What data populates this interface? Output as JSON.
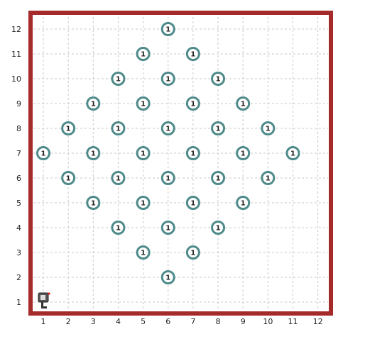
{
  "world": {
    "columns": 12,
    "rows": 12,
    "wall_color": "#a52a2a",
    "grid_color": "#c8c8c8",
    "beeper_ring_color": "#4e8a8a",
    "x_labels": [
      "1",
      "2",
      "3",
      "4",
      "5",
      "6",
      "7",
      "8",
      "9",
      "10",
      "11",
      "12"
    ],
    "y_labels": [
      "1",
      "2",
      "3",
      "4",
      "5",
      "6",
      "7",
      "8",
      "9",
      "10",
      "11",
      "12"
    ]
  },
  "beepers": [
    {
      "col": 6,
      "row": 12,
      "count": "1"
    },
    {
      "col": 5,
      "row": 11,
      "count": "1"
    },
    {
      "col": 7,
      "row": 11,
      "count": "1"
    },
    {
      "col": 4,
      "row": 10,
      "count": "1"
    },
    {
      "col": 6,
      "row": 10,
      "count": "1"
    },
    {
      "col": 8,
      "row": 10,
      "count": "1"
    },
    {
      "col": 3,
      "row": 9,
      "count": "1"
    },
    {
      "col": 5,
      "row": 9,
      "count": "1"
    },
    {
      "col": 7,
      "row": 9,
      "count": "1"
    },
    {
      "col": 9,
      "row": 9,
      "count": "1"
    },
    {
      "col": 2,
      "row": 8,
      "count": "1"
    },
    {
      "col": 4,
      "row": 8,
      "count": "1"
    },
    {
      "col": 6,
      "row": 8,
      "count": "1"
    },
    {
      "col": 8,
      "row": 8,
      "count": "1"
    },
    {
      "col": 10,
      "row": 8,
      "count": "1"
    },
    {
      "col": 1,
      "row": 7,
      "count": "1"
    },
    {
      "col": 3,
      "row": 7,
      "count": "1"
    },
    {
      "col": 5,
      "row": 7,
      "count": "1"
    },
    {
      "col": 7,
      "row": 7,
      "count": "1"
    },
    {
      "col": 9,
      "row": 7,
      "count": "1"
    },
    {
      "col": 11,
      "row": 7,
      "count": "1"
    },
    {
      "col": 2,
      "row": 6,
      "count": "1"
    },
    {
      "col": 4,
      "row": 6,
      "count": "1"
    },
    {
      "col": 6,
      "row": 6,
      "count": "1"
    },
    {
      "col": 8,
      "row": 6,
      "count": "1"
    },
    {
      "col": 10,
      "row": 6,
      "count": "1"
    },
    {
      "col": 3,
      "row": 5,
      "count": "1"
    },
    {
      "col": 5,
      "row": 5,
      "count": "1"
    },
    {
      "col": 7,
      "row": 5,
      "count": "1"
    },
    {
      "col": 9,
      "row": 5,
      "count": "1"
    },
    {
      "col": 4,
      "row": 4,
      "count": "1"
    },
    {
      "col": 6,
      "row": 4,
      "count": "1"
    },
    {
      "col": 8,
      "row": 4,
      "count": "1"
    },
    {
      "col": 5,
      "row": 3,
      "count": "1"
    },
    {
      "col": 7,
      "row": 3,
      "count": "1"
    },
    {
      "col": 6,
      "row": 2,
      "count": "1"
    }
  ],
  "robot": {
    "col": 1,
    "row": 1,
    "facing": "east",
    "icon": "robot-icon"
  }
}
